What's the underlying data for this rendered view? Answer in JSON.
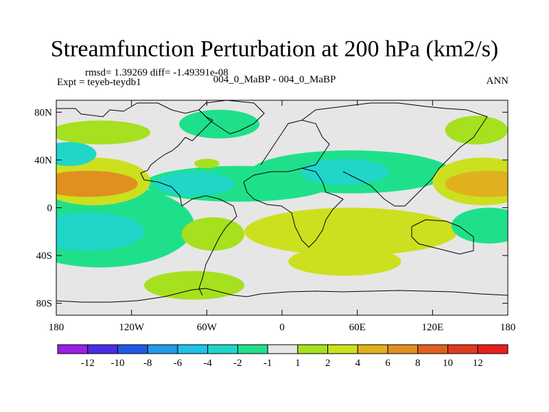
{
  "chart_data": {
    "type": "heatmap",
    "title": "Streamfunction Perturbation at 200 hPa (km2/s)",
    "stats_text": "rmsd= 1.39269 diff= -1.49391e-08",
    "left_label": "Expt = teyeb-teydb1",
    "center_label": "004_0_MaBP - 004_0_MaBP",
    "right_label": "ANN",
    "rmsd": 1.39269,
    "diff": -1.49391e-08,
    "xlim": [
      -180,
      180
    ],
    "ylim": [
      -90,
      90
    ],
    "x_ticks": [
      {
        "value": -180,
        "label": "180"
      },
      {
        "value": -120,
        "label": "120W"
      },
      {
        "value": -60,
        "label": "60W"
      },
      {
        "value": 0,
        "label": "0"
      },
      {
        "value": 60,
        "label": "60E"
      },
      {
        "value": 120,
        "label": "120E"
      },
      {
        "value": 180,
        "label": "180"
      }
    ],
    "y_ticks": [
      {
        "value": 80,
        "label": "80N"
      },
      {
        "value": 40,
        "label": "40N"
      },
      {
        "value": 0,
        "label": "0"
      },
      {
        "value": -40,
        "label": "40S"
      },
      {
        "value": -80,
        "label": "80S"
      }
    ],
    "colorbar": {
      "levels": [
        -12,
        -10,
        -8,
        -6,
        -4,
        -2,
        -1,
        1,
        2,
        4,
        6,
        8,
        10,
        12
      ],
      "labels": [
        "-12",
        "-10",
        "-8",
        "-6",
        "-4",
        "-2",
        "-1",
        "1",
        "2",
        "4",
        "6",
        "8",
        "10",
        "12"
      ],
      "colors": [
        "#9a1fe6",
        "#4a2ce6",
        "#1f5be6",
        "#1f9ae6",
        "#1fc2e6",
        "#1fd6c8",
        "#1fe08a",
        "#e6e6e6",
        "#a6e01f",
        "#cce01f",
        "#e0b01f",
        "#e0901f",
        "#e0601f",
        "#e03a1f",
        "#e61f1f"
      ]
    },
    "regions": [
      {
        "name": "north-pacific-high",
        "lon": -155,
        "lat": 20,
        "rx": 40,
        "ry": 11,
        "level": 6
      },
      {
        "name": "north-pacific-band",
        "lon": -150,
        "lat": 22,
        "rx": 45,
        "ry": 20,
        "level": 2
      },
      {
        "name": "arctic-pacific-band",
        "lon": -145,
        "lat": 63,
        "rx": 40,
        "ry": 10,
        "level": 1.5
      },
      {
        "name": "north-pacific-low",
        "lon": -170,
        "lat": 45,
        "rx": 22,
        "ry": 10,
        "level": -3
      },
      {
        "name": "atlantic-low",
        "lon": -70,
        "lat": 20,
        "rx": 32,
        "ry": 10,
        "level": -3
      },
      {
        "name": "tropical-atlantic-band",
        "lon": -35,
        "lat": 20,
        "rx": 75,
        "ry": 15,
        "level": -1.5
      },
      {
        "name": "asia-low",
        "lon": 50,
        "lat": 30,
        "rx": 35,
        "ry": 11,
        "level": -3
      },
      {
        "name": "eurasia-band",
        "lon": 55,
        "lat": 30,
        "rx": 80,
        "ry": 18,
        "level": -1.5
      },
      {
        "name": "canada-low",
        "lon": -50,
        "lat": 70,
        "rx": 32,
        "ry": 12,
        "level": -1.5
      },
      {
        "name": "arctic-atlantic-small",
        "lon": -60,
        "lat": 37,
        "rx": 10,
        "ry": 4,
        "level": 1.5
      },
      {
        "name": "arctic-pacific-east",
        "lon": 155,
        "lat": 65,
        "rx": 25,
        "ry": 12,
        "level": 1.5
      },
      {
        "name": "east-pacific-high",
        "lon": 165,
        "lat": 20,
        "rx": 35,
        "ry": 11,
        "level": 5
      },
      {
        "name": "east-pacific-band",
        "lon": 160,
        "lat": 22,
        "rx": 40,
        "ry": 20,
        "level": 2
      },
      {
        "name": "south-pacific-low",
        "lon": -155,
        "lat": -20,
        "rx": 45,
        "ry": 16,
        "level": -3
      },
      {
        "name": "south-pacific-band",
        "lon": -145,
        "lat": -15,
        "rx": 75,
        "ry": 35,
        "level": -1.5
      },
      {
        "name": "south-pacific-east",
        "lon": 165,
        "lat": -15,
        "rx": 30,
        "ry": 15,
        "level": -1.5
      },
      {
        "name": "south-america-band",
        "lon": -55,
        "lat": -22,
        "rx": 25,
        "ry": 14,
        "level": 1.5
      },
      {
        "name": "indian-ocean-band",
        "lon": 55,
        "lat": -20,
        "rx": 85,
        "ry": 20,
        "level": 2
      },
      {
        "name": "indian-ocean-high",
        "lon": 65,
        "lat": -15,
        "rx": 40,
        "ry": 8,
        "level": 3
      },
      {
        "name": "south-indian-high",
        "lon": 50,
        "lat": -45,
        "rx": 25,
        "ry": 7,
        "level": 3
      },
      {
        "name": "south-indian-band",
        "lon": 50,
        "lat": -45,
        "rx": 45,
        "ry": 12,
        "level": 2
      },
      {
        "name": "southern-ocean-band",
        "lon": -70,
        "lat": -65,
        "rx": 40,
        "ry": 12,
        "level": 1.5
      }
    ]
  }
}
